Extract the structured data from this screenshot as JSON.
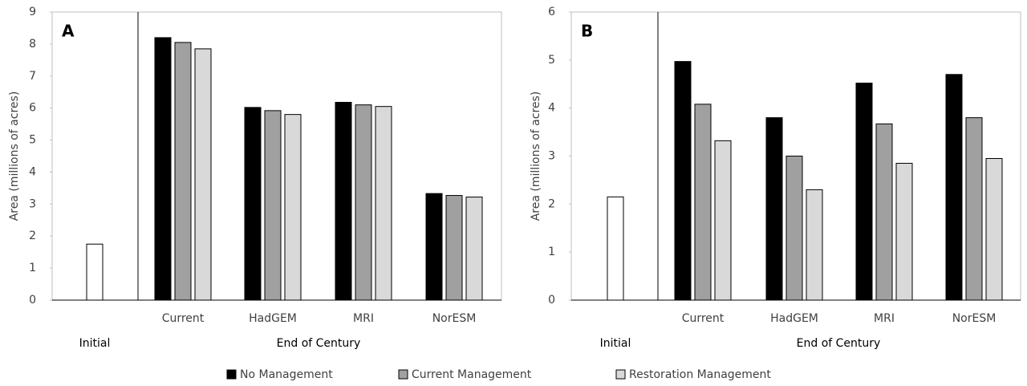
{
  "chart_data": [
    {
      "type": "bar",
      "panel_label": "A",
      "ylabel": "Area (millions of acres)",
      "initial": {
        "label": "Initial",
        "value": 1.75,
        "color": "#ffffff"
      },
      "group_label": "End of Century",
      "categories": [
        "Current",
        "HadGEM",
        "MRI",
        "NorESM"
      ],
      "series": [
        {
          "color": "#000000",
          "values": [
            8.2,
            6.02,
            6.18,
            3.33
          ]
        },
        {
          "color": "#a0a0a0",
          "values": [
            8.05,
            5.92,
            6.1,
            3.27
          ]
        },
        {
          "color": "#d9d9d9",
          "values": [
            7.85,
            5.8,
            6.05,
            3.22
          ]
        }
      ],
      "ylim": [
        0,
        9
      ],
      "yticks": [
        0,
        1,
        2,
        3,
        4,
        5,
        6,
        7,
        8,
        9
      ]
    },
    {
      "type": "bar",
      "panel_label": "B",
      "ylabel": "Area (millions of acres)",
      "initial": {
        "label": "Initial",
        "value": 2.15,
        "color": "#ffffff"
      },
      "group_label": "End of Century",
      "categories": [
        "Current",
        "HadGEM",
        "MRI",
        "NorESM"
      ],
      "series": [
        {
          "color": "#000000",
          "values": [
            4.97,
            3.8,
            4.52,
            4.7
          ]
        },
        {
          "color": "#a0a0a0",
          "values": [
            4.08,
            3.0,
            3.67,
            3.8
          ]
        },
        {
          "color": "#d9d9d9",
          "values": [
            3.32,
            2.3,
            2.85,
            2.95
          ]
        }
      ],
      "ylim": [
        0,
        6
      ],
      "yticks": [
        0,
        1,
        2,
        3,
        4,
        5,
        6
      ]
    }
  ],
  "legend": [
    {
      "name": "No Management",
      "color": "#000000"
    },
    {
      "name": "Current Management",
      "color": "#a0a0a0"
    },
    {
      "name": "Restoration Management",
      "color": "#d9d9d9"
    }
  ]
}
